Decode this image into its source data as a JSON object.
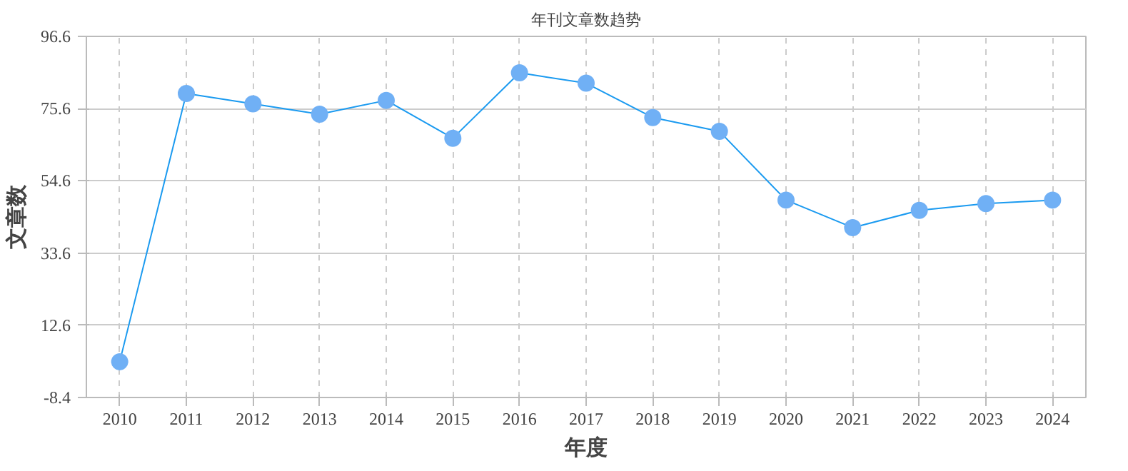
{
  "chart_data": {
    "type": "line",
    "title": "年刊文章数趋势",
    "xlabel": "年度",
    "ylabel": "文章数",
    "categories": [
      "2010",
      "2011",
      "2012",
      "2013",
      "2014",
      "2015",
      "2016",
      "2017",
      "2018",
      "2019",
      "2020",
      "2021",
      "2022",
      "2023",
      "2024"
    ],
    "series": [
      {
        "color": "#1a9af0",
        "values": [
          2,
          80,
          77,
          74,
          78,
          67,
          86,
          83,
          73,
          69,
          49,
          41,
          46,
          48,
          49
        ]
      }
    ],
    "ylim": [
      -8.4,
      96.6
    ],
    "yticks": [
      {
        "value": -8.4,
        "label": "-8.4"
      },
      {
        "value": 12.6,
        "label": "12.6"
      },
      {
        "value": 33.6,
        "label": "33.6"
      },
      {
        "value": 54.6,
        "label": "54.6"
      },
      {
        "value": 75.6,
        "label": "75.6"
      },
      {
        "value": 96.6,
        "label": "96.6"
      }
    ],
    "grid": true,
    "marker": "circle",
    "line_style": "solid"
  }
}
